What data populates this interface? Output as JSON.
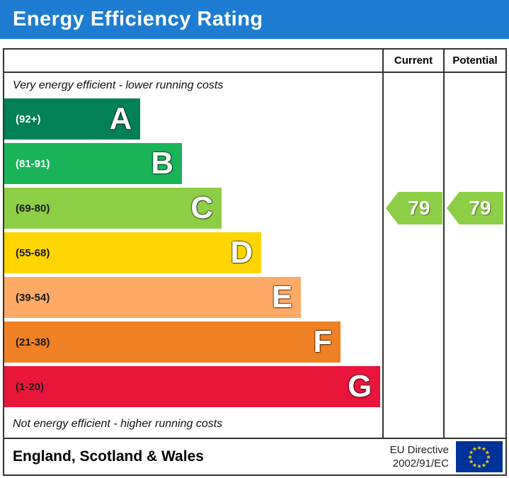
{
  "title": "Energy Efficiency Rating",
  "colors": {
    "header_bg": "#1e7dd2",
    "header_text": "#ffffff",
    "border": "#333333",
    "eu_flag_bg": "#003399",
    "eu_flag_stars": "#ffcc00"
  },
  "columns": {
    "current": "Current",
    "potential": "Potential"
  },
  "captions": {
    "top": "Very energy efficient - lower running costs",
    "bottom": "Not energy efficient - higher running costs"
  },
  "bands": [
    {
      "letter": "A",
      "range": "(92+)",
      "color": "#008054",
      "text_color": "#ffffff",
      "width_pct": 36
    },
    {
      "letter": "B",
      "range": "(81-91)",
      "color": "#19b459",
      "text_color": "#ffffff",
      "width_pct": 47
    },
    {
      "letter": "C",
      "range": "(69-80)",
      "color": "#8dce46",
      "text_color": "#1a1a1a",
      "width_pct": 57.5
    },
    {
      "letter": "D",
      "range": "(55-68)",
      "color": "#ffd500",
      "text_color": "#1a1a1a",
      "width_pct": 68
    },
    {
      "letter": "E",
      "range": "(39-54)",
      "color": "#fcaa65",
      "text_color": "#1a1a1a",
      "width_pct": 78.5
    },
    {
      "letter": "F",
      "range": "(21-38)",
      "color": "#ef8023",
      "text_color": "#1a1a1a",
      "width_pct": 89
    },
    {
      "letter": "G",
      "range": "(1-20)",
      "color": "#e9153b",
      "text_color": "#1a1a1a",
      "width_pct": 99.5
    }
  ],
  "ratings": {
    "current": {
      "value": "79",
      "band": "C",
      "color": "#8dce46"
    },
    "potential": {
      "value": "79",
      "band": "C",
      "color": "#8dce46"
    }
  },
  "footer": {
    "region": "England, Scotland & Wales",
    "directive_line1": "EU Directive",
    "directive_line2": "2002/91/EC"
  },
  "chart_data": {
    "type": "bar",
    "orientation": "horizontal",
    "title": "Energy Efficiency Rating",
    "categories": [
      "A",
      "B",
      "C",
      "D",
      "E",
      "F",
      "G"
    ],
    "band_ranges": [
      "92+",
      "81-91",
      "69-80",
      "55-68",
      "39-54",
      "21-38",
      "1-20"
    ],
    "band_colors": [
      "#008054",
      "#19b459",
      "#8dce46",
      "#ffd500",
      "#fcaa65",
      "#ef8023",
      "#e9153b"
    ],
    "bar_relative_widths_pct": [
      36,
      47,
      57.5,
      68,
      78.5,
      89,
      99.5
    ],
    "series": [
      {
        "name": "Current",
        "value": 79,
        "band": "C"
      },
      {
        "name": "Potential",
        "value": 79,
        "band": "C"
      }
    ],
    "annotations": [
      "Very energy efficient - lower running costs",
      "Not energy efficient - higher running costs",
      "England, Scotland & Wales",
      "EU Directive 2002/91/EC"
    ],
    "legend_position": "none",
    "grid": false
  }
}
